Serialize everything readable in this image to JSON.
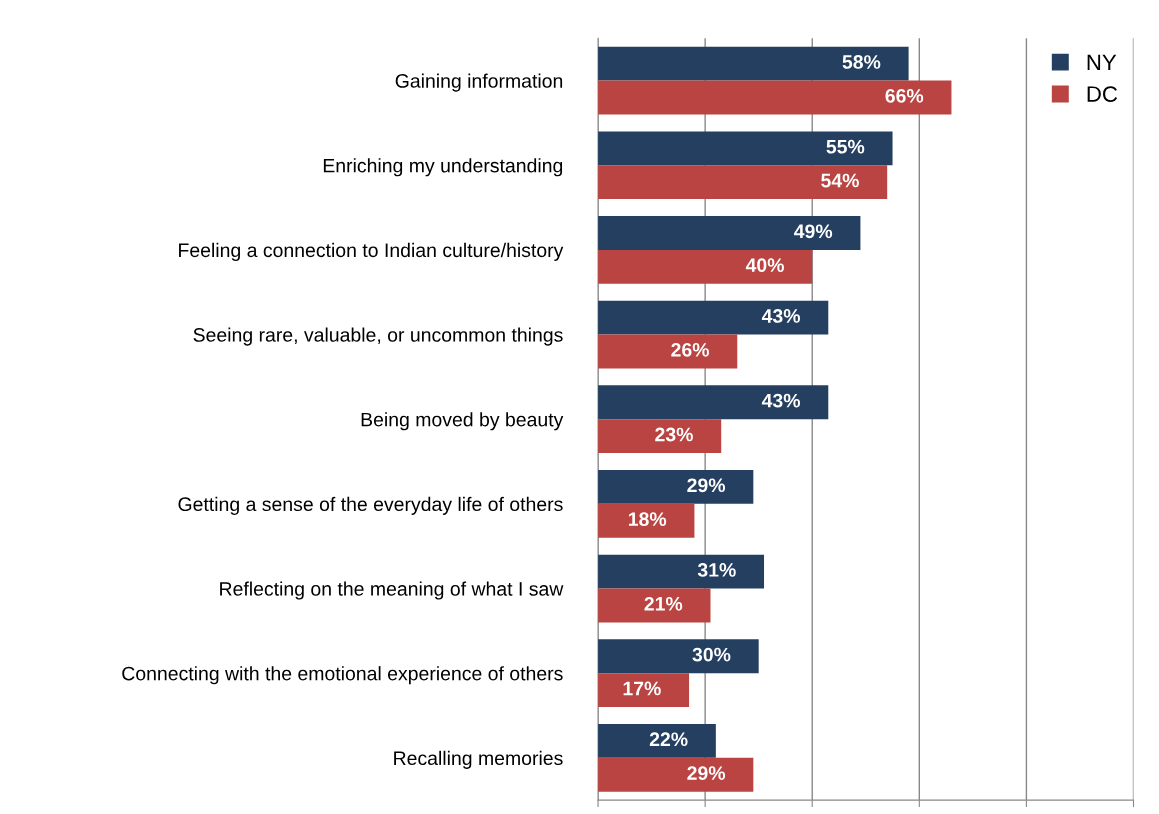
{
  "chart_data": {
    "type": "bar",
    "orientation": "horizontal",
    "categories": [
      "Gaining information",
      "Enriching my understanding",
      "Feeling a connection to Indian culture/history",
      "Seeing rare, valuable, or uncommon things",
      "Being moved by beauty",
      "Getting a sense of the everyday life of others",
      "Reflecting on the meaning of what I saw",
      "Connecting with the emotional experience of others",
      "Recalling memories"
    ],
    "series": [
      {
        "name": "NY",
        "color": "#243f60",
        "values": [
          58,
          55,
          49,
          43,
          43,
          29,
          31,
          30,
          22
        ],
        "value_labels": [
          "58%",
          "55%",
          "49%",
          "43%",
          "43%",
          "29%",
          "31%",
          "30%",
          "22%"
        ]
      },
      {
        "name": "DC",
        "color": "#b94441",
        "values": [
          66,
          54,
          40,
          26,
          23,
          18,
          21,
          17,
          29
        ],
        "value_labels": [
          "66%",
          "54%",
          "40%",
          "26%",
          "23%",
          "18%",
          "21%",
          "17%",
          "29%"
        ]
      }
    ],
    "xlim": [
      0,
      100
    ],
    "xticks": [
      {
        "value": 0,
        "label": null
      },
      {
        "value": 20,
        "label": null
      },
      {
        "value": 40,
        "label": null
      },
      {
        "value": 60,
        "label": null
      },
      {
        "value": 80,
        "label": null
      },
      {
        "value": 100,
        "label": null
      }
    ],
    "tick_labels": "y",
    "grid": "x",
    "legend": "top right"
  }
}
